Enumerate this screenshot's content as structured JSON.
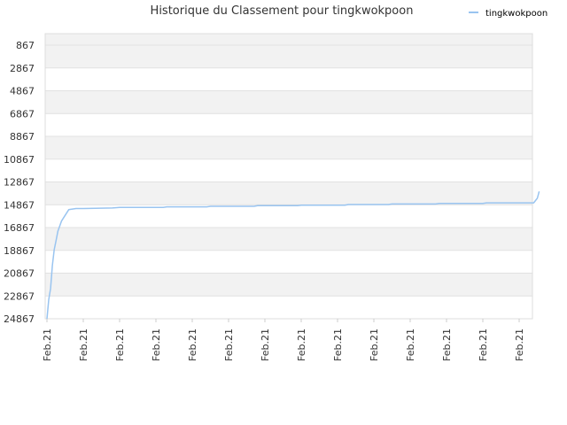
{
  "chart_data": {
    "type": "line",
    "title": "Historique du Classement pour tingkwokpoon",
    "xlabel": "",
    "ylabel": "",
    "y_reversed": true,
    "ylim": [
      24867,
      867
    ],
    "y_ticks": [
      "867",
      "2867",
      "4867",
      "6867",
      "8867",
      "10867",
      "12867",
      "14867",
      "16867",
      "18867",
      "20867",
      "22867",
      "24867"
    ],
    "x_ticks": [
      "Feb.21",
      "Feb.21",
      "Feb.21",
      "Feb.21",
      "Feb.21",
      "Feb.21",
      "Feb.21",
      "Feb.21",
      "Feb.21",
      "Feb.21",
      "Feb.21",
      "Feb.21",
      "Feb.21",
      "Feb.21"
    ],
    "grid": true,
    "legend_position": "top-right",
    "series": [
      {
        "name": "tingkwokpoon",
        "color": "#99c4f0",
        "x": [
          0,
          0.05,
          0.1,
          0.15,
          0.2,
          0.25,
          0.3,
          0.4,
          0.6,
          0.8,
          1.0,
          1.8,
          2.0,
          3.2,
          3.3,
          4.4,
          4.5,
          5.7,
          5.8,
          6.9,
          7.0,
          8.2,
          8.3,
          9.4,
          9.5,
          10.7,
          10.8,
          12.0,
          12.1,
          13.4,
          13.5,
          13.55
        ],
        "y": [
          24867,
          23200,
          22200,
          20200,
          18800,
          18000,
          17200,
          16300,
          15300,
          15200,
          15200,
          15150,
          15100,
          15100,
          15050,
          15050,
          15000,
          15000,
          14950,
          14950,
          14900,
          14900,
          14850,
          14850,
          14800,
          14800,
          14750,
          14750,
          14700,
          14700,
          14300,
          13700
        ]
      }
    ]
  }
}
